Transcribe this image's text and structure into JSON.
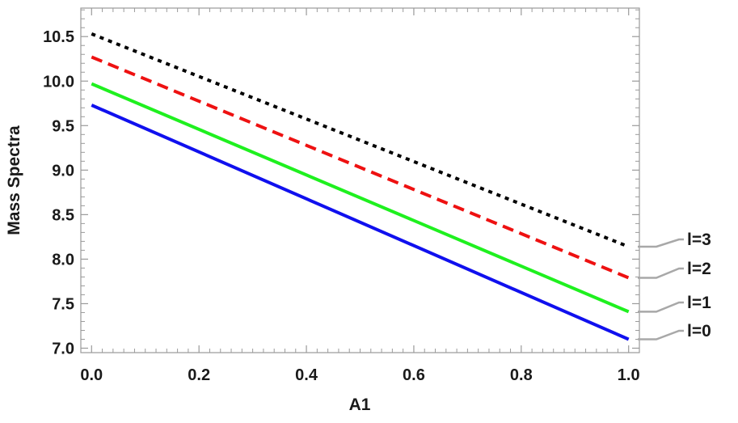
{
  "chart_data": {
    "type": "line",
    "title": "",
    "xlabel": "A1",
    "ylabel": "Mass Spectra",
    "xlim": [
      -0.02,
      1.02
    ],
    "ylim": [
      6.95,
      10.82
    ],
    "x_ticks": [
      "0.0",
      "0.2",
      "0.4",
      "0.6",
      "0.8",
      "1.0"
    ],
    "y_ticks": [
      "7.0",
      "7.5",
      "8.0",
      "8.5",
      "9.0",
      "9.5",
      "10.0",
      "10.5"
    ],
    "grid": false,
    "legend": "callout labels at right end of lines",
    "series": [
      {
        "name": "l=0",
        "x": [
          0.0,
          1.0
        ],
        "y": [
          9.73,
          7.1
        ],
        "color": "#1010ee",
        "style": "solid"
      },
      {
        "name": "l=1",
        "x": [
          0.0,
          1.0
        ],
        "y": [
          9.97,
          7.41
        ],
        "color": "#1ff01f",
        "style": "solid"
      },
      {
        "name": "l=2",
        "x": [
          0.0,
          1.0
        ],
        "y": [
          10.27,
          7.79
        ],
        "color": "#ee1111",
        "style": "dashed"
      },
      {
        "name": "l=3",
        "x": [
          0.0,
          1.0
        ],
        "y": [
          10.53,
          8.14
        ],
        "color": "#000000",
        "style": "dotted"
      }
    ]
  }
}
